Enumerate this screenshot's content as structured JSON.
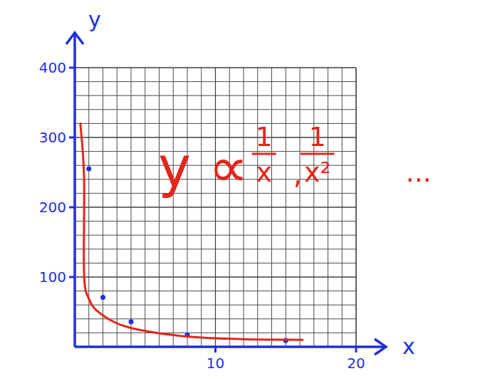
{
  "chart_data": {
    "type": "scatter",
    "x_label": "x",
    "y_label": "y",
    "xlim": [
      0,
      20
    ],
    "ylim": [
      0,
      400
    ],
    "xticks": [
      10,
      20
    ],
    "yticks": [
      100,
      200,
      300,
      400
    ],
    "grid": true,
    "series": [
      {
        "type": "scatter",
        "color": "#1f2fe0",
        "marker": "circle",
        "x": [
          1,
          2,
          4,
          8,
          15
        ],
        "values": [
          255,
          71,
          36,
          17,
          9
        ]
      },
      {
        "type": "line",
        "color": "#e3261c",
        "line_style": "solid",
        "x": [
          0.4,
          0.66,
          0.66,
          1.0,
          1.8,
          3.8,
          7.8,
          11.9,
          16.2
        ],
        "values": [
          320,
          243,
          105,
          69,
          48,
          28,
          15,
          11,
          10
        ]
      }
    ],
    "annotation": {
      "color": "#e3261c",
      "lhs": "y ∝",
      "fractions": [
        [
          "1",
          "x"
        ],
        [
          "1",
          "x²"
        ]
      ],
      "separator": ",",
      "tail": "..."
    }
  }
}
